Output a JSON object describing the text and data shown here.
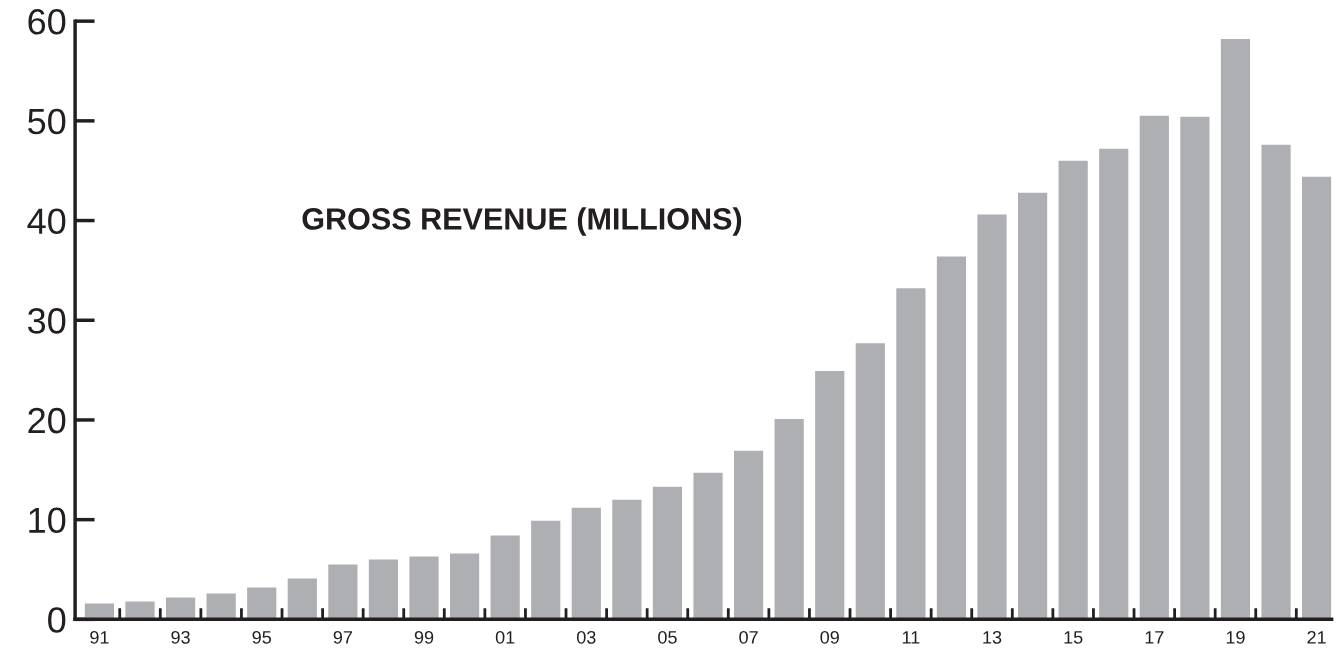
{
  "chart_data": {
    "type": "bar",
    "title": "GROSS REVENUE (MILLIONS)",
    "categories": [
      "91",
      null,
      "93",
      null,
      "95",
      null,
      "97",
      null,
      "99",
      null,
      "01",
      null,
      "03",
      null,
      "05",
      null,
      "07",
      null,
      "09",
      null,
      "11",
      null,
      "13",
      null,
      "15",
      null,
      "17",
      null,
      "19",
      null,
      "21"
    ],
    "values": [
      1.6,
      1.8,
      2.2,
      2.6,
      3.2,
      4.1,
      5.5,
      6.0,
      6.3,
      6.6,
      8.4,
      9.9,
      11.2,
      12.0,
      13.3,
      14.7,
      16.9,
      20.1,
      24.9,
      27.7,
      33.2,
      36.4,
      40.6,
      42.8,
      46.0,
      47.2,
      50.5,
      50.4,
      58.2,
      47.6,
      44.4
    ],
    "color": "#aeafb3",
    "ylim": [
      0,
      60
    ],
    "yticks": [
      0,
      10,
      20,
      30,
      40,
      50,
      60
    ],
    "grid": false,
    "legend": false
  }
}
